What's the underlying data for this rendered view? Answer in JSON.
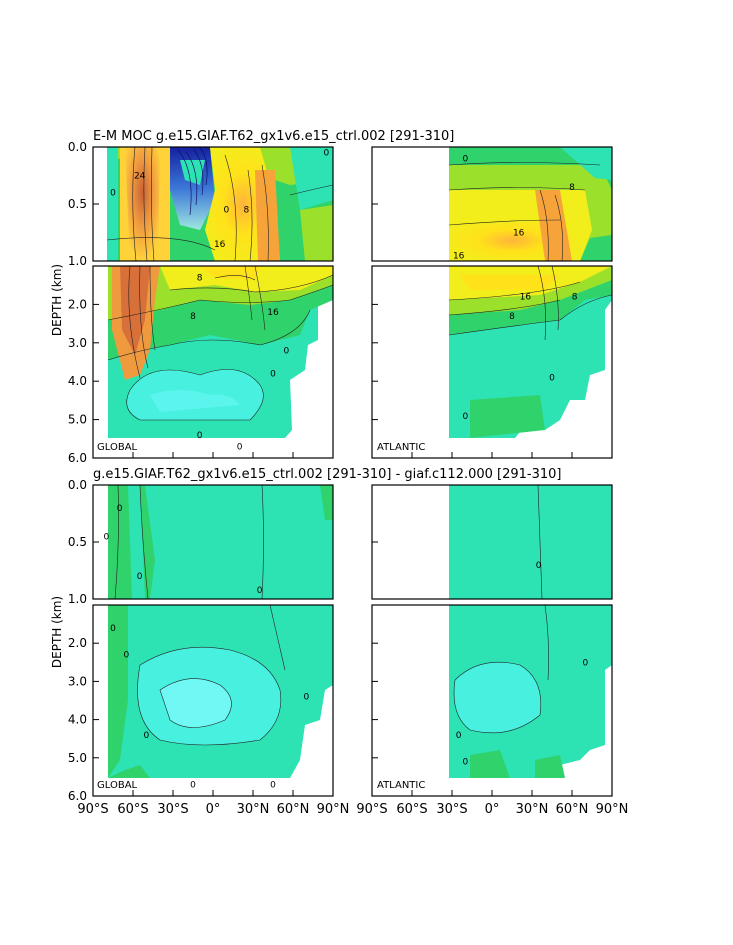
{
  "figure": {
    "title_top": "E-M MOC   g.e15.GIAF.T62_gx1v6.e15_ctrl.002  [291-310]",
    "title_bottom": "g.e15.GIAF.T62_gx1v6.e15_ctrl.002  [291-310]  - giaf.c112.000  [291-310]",
    "ylabel": "DEPTH (km)"
  },
  "chart_data": {
    "type": "heatmap",
    "x_ticks": [
      "90°S",
      "60°S",
      "30°S",
      "0°",
      "30°N",
      "60°N",
      "90°N"
    ],
    "x_values": [
      -90,
      -60,
      -30,
      0,
      30,
      60,
      90
    ],
    "xlim": [
      -90,
      90
    ],
    "upper_y_ticks": [
      "0.0",
      "0.5",
      "1.0"
    ],
    "upper_y_values": [
      0,
      0.5,
      1.0
    ],
    "upper_ylim": [
      0,
      1.0
    ],
    "lower_y_ticks": [
      "2.0",
      "3.0",
      "4.0",
      "5.0",
      "6.0"
    ],
    "lower_y_values": [
      2,
      3,
      4,
      5,
      6
    ],
    "lower_ylim": [
      1.0,
      6.0
    ],
    "panels": [
      {
        "id": "moc-global",
        "row": 0,
        "col": 0,
        "basin_label": "GLOBAL",
        "x_range": [
          -90,
          90
        ],
        "contour_labels": [
          {
            "text": "24",
            "x": -55,
            "y": 0.25
          },
          {
            "text": "8",
            "x": 25,
            "y": 0.55
          },
          {
            "text": "16",
            "x": 5,
            "y": 0.85
          },
          {
            "text": "0",
            "x": 10,
            "y": 0.55
          },
          {
            "text": "0",
            "x": -75,
            "y": 0.4
          },
          {
            "text": "0",
            "x": 85,
            "y": 0.05
          },
          {
            "text": "16",
            "x": 45,
            "y": 2.2
          },
          {
            "text": "8",
            "x": -15,
            "y": 2.3
          },
          {
            "text": "8",
            "x": -10,
            "y": 1.3
          },
          {
            "text": "0",
            "x": 45,
            "y": 3.8
          },
          {
            "text": "0",
            "x": 55,
            "y": 3.2
          },
          {
            "text": "0",
            "x": -10,
            "y": 5.4
          },
          {
            "text": "0",
            "x": 20,
            "y": 5.7
          }
        ]
      },
      {
        "id": "moc-atlantic",
        "row": 0,
        "col": 1,
        "basin_label": "ATLANTIC",
        "x_range": [
          -32,
          90
        ],
        "contour_labels": [
          {
            "text": "8",
            "x": 60,
            "y": 0.35
          },
          {
            "text": "16",
            "x": 20,
            "y": 0.75
          },
          {
            "text": "16",
            "x": -25,
            "y": 0.95
          },
          {
            "text": "0",
            "x": -20,
            "y": 0.1
          },
          {
            "text": "16",
            "x": 25,
            "y": 1.8
          },
          {
            "text": "8",
            "x": 15,
            "y": 2.3
          },
          {
            "text": "8",
            "x": 62,
            "y": 1.8
          },
          {
            "text": "0",
            "x": 45,
            "y": 3.9
          },
          {
            "text": "0",
            "x": -20,
            "y": 4.9
          }
        ]
      },
      {
        "id": "diff-global",
        "row": 1,
        "col": 0,
        "basin_label": "GLOBAL",
        "x_range": [
          -90,
          90
        ],
        "contour_labels": [
          {
            "text": "0",
            "x": -70,
            "y": 0.2
          },
          {
            "text": "0",
            "x": -80,
            "y": 0.45
          },
          {
            "text": "0",
            "x": -55,
            "y": 0.8
          },
          {
            "text": "0",
            "x": 35,
            "y": 0.92
          },
          {
            "text": "0",
            "x": -75,
            "y": 1.6
          },
          {
            "text": "0",
            "x": -65,
            "y": 2.3
          },
          {
            "text": "0",
            "x": 70,
            "y": 3.4
          },
          {
            "text": "0",
            "x": -50,
            "y": 4.4
          },
          {
            "text": "0",
            "x": -15,
            "y": 5.7
          },
          {
            "text": "0",
            "x": 45,
            "y": 5.7
          }
        ]
      },
      {
        "id": "diff-atlantic",
        "row": 1,
        "col": 1,
        "basin_label": "ATLANTIC",
        "x_range": [
          -32,
          90
        ],
        "contour_labels": [
          {
            "text": "0",
            "x": 35,
            "y": 0.7
          },
          {
            "text": "0",
            "x": 70,
            "y": 2.5
          },
          {
            "text": "0",
            "x": -25,
            "y": 4.4
          },
          {
            "text": "0",
            "x": -20,
            "y": 5.1
          }
        ]
      }
    ],
    "colors": {
      "deep_negative": "#6a00a8",
      "negative": "#3c78d8",
      "zero": "#2de3b4",
      "low": "#30d26c",
      "mid": "#9be02a",
      "high": "#ffe21a",
      "higher": "#f6a33a",
      "max": "#d8703a",
      "land": "#ffffff"
    }
  }
}
